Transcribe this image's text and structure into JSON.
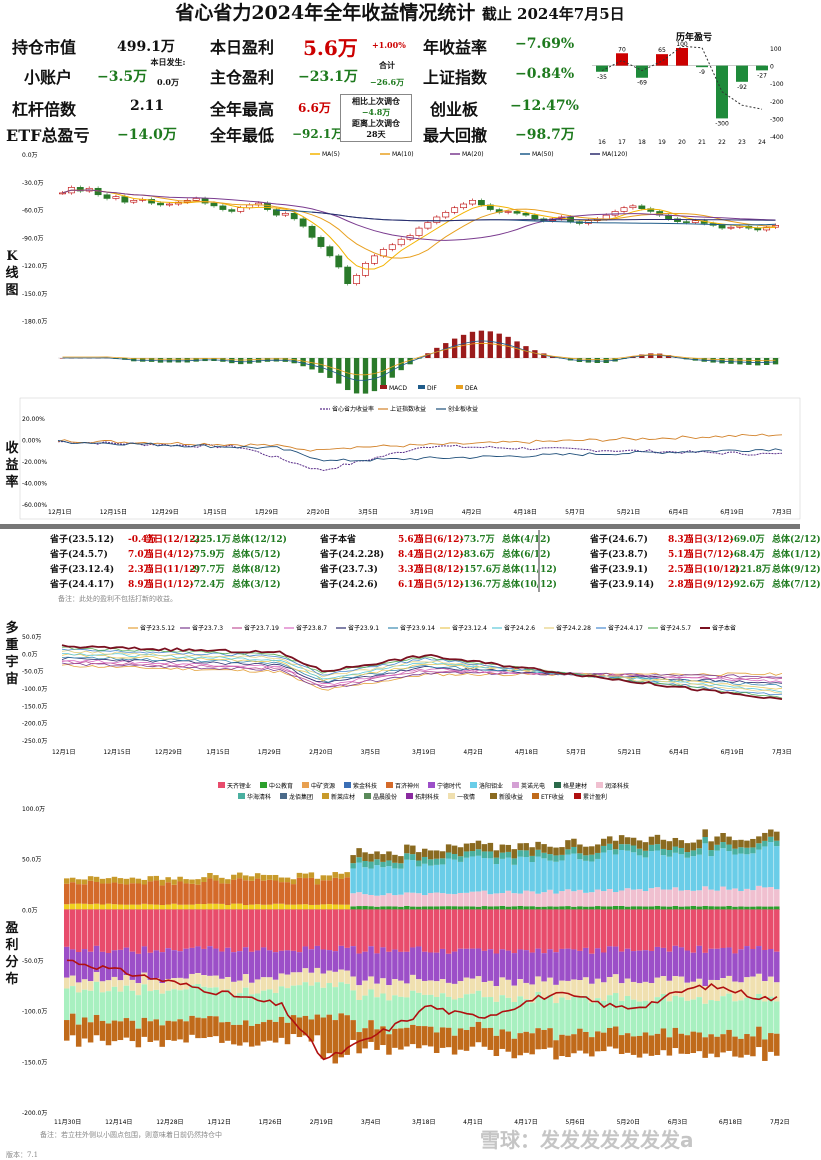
{
  "title": "省心省力2024年全年收益情况统计",
  "as_of": "截止 2024年7月5日",
  "stats": {
    "hold_value_lbl": "持仓市值",
    "hold_value": "499.1万",
    "small_acct_lbl": "小账户",
    "small_acct": "−3.5万",
    "today_occ_lbl": "本日发生:",
    "today_occ": "0.0万",
    "leverage_lbl": "杠杆倍数",
    "leverage": "2.11",
    "etf_lbl": "ETF总盈亏",
    "etf": "−14.0万",
    "today_pnl_lbl": "本日盈利",
    "today_pnl": "5.6万",
    "today_pct": "+1.00%",
    "main_pnl_lbl": "主仓盈利",
    "main_pnl": "−23.1万",
    "total_lbl": "合计",
    "total": "−26.6万",
    "year_high_lbl": "全年最高",
    "year_high": "6.6万",
    "year_low_lbl": "全年最低",
    "year_low": "−92.1万",
    "adj_lbl": "相比上次调仓",
    "adj": "−4.8万",
    "days_lbl": "距离上次调仓",
    "days": "28天",
    "annual_lbl": "年收益率",
    "annual": "−7.69%",
    "sh_lbl": "上证指数",
    "sh": "−0.84%",
    "cyb_lbl": "创业板",
    "cyb": "−12.47%",
    "dd_lbl": "最大回撤",
    "dd": "−98.7万"
  },
  "side_labels": {
    "k": "K 线 图",
    "ret": "收 益 率",
    "multi": "多 重 宇 宙",
    "dist": "盈 利 分 布"
  },
  "tables": [
    [
      [
        "省子(23.5.12)",
        "-0.4万",
        "当日(12/12)",
        "-225.1万",
        "总体(12/12)"
      ],
      [
        "省子(24.5.7)",
        "7.0万",
        "当日(4/12)",
        "-75.9万",
        "总体(5/12)"
      ],
      [
        "省子(23.12.4)",
        "2.3万",
        "当日(11/12)",
        "-97.7万",
        "总体(8/12)"
      ],
      [
        "省子(24.4.17)",
        "8.9万",
        "当日(1/12)",
        "-72.4万",
        "总体(3/12)"
      ]
    ],
    [
      [
        "省子本省",
        "5.6万",
        "当日(6/12)",
        "-73.7万",
        "总体(4/12)"
      ],
      [
        "省子(24.2.28)",
        "8.4万",
        "当日(2/12)",
        "-83.6万",
        "总体(6/12)"
      ],
      [
        "省子(23.7.3)",
        "3.3万",
        "当日(8/12)",
        "-157.6万",
        "总体(11/12)"
      ],
      [
        "省子(24.2.6)",
        "6.1万",
        "当日(5/12)",
        "-136.7万",
        "总体(10/12)"
      ]
    ],
    [
      [
        "省子(24.6.7)",
        "8.3万",
        "当日(3/12)",
        "-69.0万",
        "总体(2/12)"
      ],
      [
        "省子(23.8.7)",
        "5.1万",
        "当日(7/12)",
        "-68.4万",
        "总体(1/12)"
      ],
      [
        "省子(23.9.1)",
        "2.5万",
        "当日(10/12)",
        "-121.8万",
        "总体(9/12)"
      ],
      [
        "省子(23.9.14)",
        "2.8万",
        "当日(9/12)",
        "-92.6万",
        "总体(7/12)"
      ]
    ]
  ],
  "table_note": "备注：此处的盈利不包括打新的收益。",
  "footer_note": "备注：若立柱外侧以小圆点包围，则意味着日前仍然持仓中",
  "version": "版本：7.1",
  "watermark": "雪球：发发发发发发发a",
  "chart_data": [
    {
      "type": "bar",
      "title": "历年盈亏",
      "categories": [
        "16",
        "17",
        "18",
        "19",
        "20",
        "21",
        "22",
        "23",
        "24"
      ],
      "values": [
        -35,
        70,
        -69,
        65,
        100,
        -9,
        -300,
        -92,
        -27
      ],
      "ylim": [
        -400,
        100
      ],
      "ylabels": [
        "100",
        "0",
        "-100",
        "-200",
        "-300",
        "-400"
      ]
    },
    {
      "type": "candlestick",
      "ylabels": [
        "0.0万",
        "-30.0万",
        "-60.0万",
        "-90.0万",
        "-120.0万",
        "-150.0万",
        "-180.0万"
      ],
      "legend": [
        "MA(5)",
        "MA(10)",
        "MA(20)",
        "MA(50)",
        "MA(120)"
      ],
      "colors": [
        "#f4b400",
        "#e8a020",
        "#7a3b8f",
        "#1f5c8a",
        "#2c2c6e"
      ],
      "close": [
        -42,
        -36,
        -40,
        -37,
        -44,
        -48,
        -46,
        -52,
        -50,
        -49,
        -53,
        -55,
        -54,
        -52,
        -50,
        -48,
        -53,
        -56,
        -60,
        -62,
        -58,
        -55,
        -53,
        -60,
        -66,
        -64,
        -70,
        -78,
        -90,
        -100,
        -110,
        -122,
        -140,
        -131,
        -118,
        -110,
        -103,
        -98,
        -92,
        -88,
        -80,
        -74,
        -68,
        -63,
        -58,
        -54,
        -50,
        -55,
        -60,
        -63,
        -62,
        -64,
        -66,
        -70,
        -72,
        -70,
        -68,
        -73,
        -75,
        -72,
        -70,
        -66,
        -62,
        -58,
        -56,
        -59,
        -62,
        -66,
        -70,
        -73,
        -74,
        -72,
        -75,
        -77,
        -80,
        -79,
        -78,
        -80,
        -82,
        -79,
        -77
      ]
    },
    {
      "type": "bar",
      "name": "MACD",
      "legend": [
        "MACD",
        "DIF",
        "DEA"
      ]
    },
    {
      "type": "line",
      "ylabels": [
        "20.00%",
        "0.00%",
        "-20.00%",
        "-40.00%",
        "-60.00%"
      ],
      "legend": [
        "省心省力收益率",
        "上证指数收益",
        "创业板收益"
      ],
      "xlabels": [
        "12月1日",
        "12月15日",
        "12月29日",
        "1月15日",
        "1月29日",
        "2月20日",
        "3月5日",
        "3月19日",
        "4月2日",
        "4月18日",
        "5月7日",
        "5月21日",
        "6月4日",
        "6月19日",
        "7月3日"
      ]
    },
    {
      "type": "line",
      "legend": [
        "省子23.5.12",
        "省子23.7.3",
        "省子23.7.19",
        "省子23.8.7",
        "省子23.9.1",
        "省子23.9.14",
        "省子23.12.4",
        "省子24.2.6",
        "省子24.2.28",
        "省子24.4.17",
        "省子24.5.7",
        "省子本省"
      ],
      "ylabels": [
        "50.0万",
        "0.0万",
        "-50.0万",
        "-100.0万",
        "-150.0万",
        "-200.0万",
        "-250.0万"
      ],
      "xlabels": [
        "12月1日",
        "12月15日",
        "12月29日",
        "1月15日",
        "1月29日",
        "2月20日",
        "3月5日",
        "3月19日",
        "4月2日",
        "4月18日",
        "5月7日",
        "5月21日",
        "6月4日",
        "6月19日",
        "7月3日"
      ]
    },
    {
      "type": "area",
      "legend": [
        "天齐锂业",
        "中公教育",
        "中矿资源",
        "紫金科技",
        "百济神州",
        "宁德时代",
        "洛阳钼业",
        "英诺光电",
        "格星建材",
        "润泽科技",
        "华海清科",
        "龙佰集团",
        "新莱应材",
        "晶晨股份",
        "拓荆科技",
        "一夜情",
        "新股收益",
        "ETF收益",
        "累计盈利"
      ],
      "ylabels": [
        "100.0万",
        "50.0万",
        "0.0万",
        "-50.0万",
        "-100.0万",
        "-150.0万",
        "-200.0万"
      ],
      "xlabels": [
        "11月30日",
        "12月14日",
        "12月28日",
        "1月12日",
        "1月26日",
        "2月19日",
        "3月4日",
        "3月18日",
        "4月1日",
        "4月17日",
        "5月6日",
        "5月20日",
        "6月3日",
        "6月18日",
        "7月2日"
      ]
    }
  ]
}
